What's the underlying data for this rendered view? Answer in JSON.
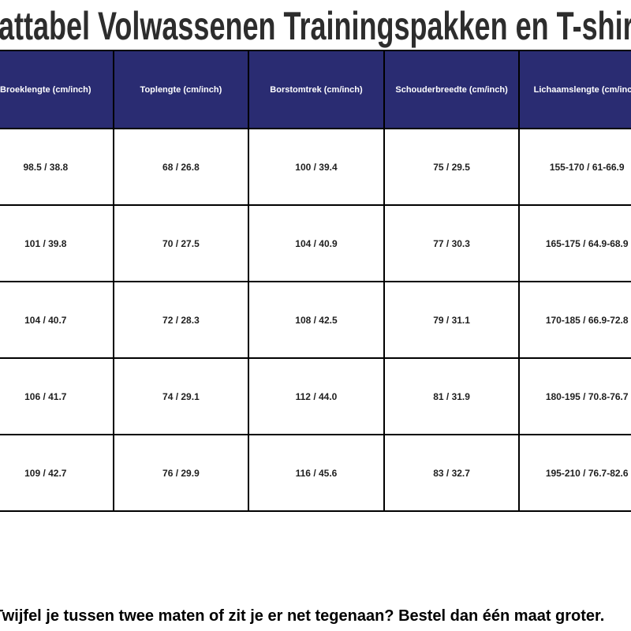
{
  "header": {
    "title": "Maattabel Volwassenen Trainingspakken en T-shirts"
  },
  "chart_data": {
    "type": "table",
    "title": "Maattabel Volwassenen Trainingspakken en T-shirts",
    "columns": [
      "Broeklengte (cm/inch)",
      "Toplengte (cm/inch)",
      "Borstomtrek (cm/inch)",
      "Schouderbreedte (cm/inch)",
      "Lichaamslengte (cm/inch)"
    ],
    "rows": [
      [
        "98.5 / 38.8",
        "68 / 26.8",
        "100 / 39.4",
        "75 / 29.5",
        "155-170 / 61-66.9"
      ],
      [
        "101 / 39.8",
        "70 / 27.5",
        "104 / 40.9",
        "77 / 30.3",
        "165-175 / 64.9-68.9"
      ],
      [
        "104 / 40.7",
        "72 / 28.3",
        "108 / 42.5",
        "79 / 31.1",
        "170-185 / 66.9-72.8"
      ],
      [
        "106 / 41.7",
        "74 / 29.1",
        "112 / 44.0",
        "81 / 31.9",
        "180-195 / 70.8-76.7"
      ],
      [
        "109 / 42.7",
        "76 / 29.9",
        "116 / 45.6",
        "83 / 32.7",
        "195-210 / 76.7-82.6"
      ]
    ],
    "layout": {
      "header_position": "top",
      "grid": true,
      "cells_cropped_left_and_right": true
    }
  },
  "footer": {
    "note": "Twijfel je tussen twee maten of zit je er net tegenaan? Bestel dan één maat groter."
  },
  "colors": {
    "header_bg": "#2a2c72",
    "header_text": "#ffffff",
    "cell_bg": "#ffffff",
    "cell_text": "#1f1f1f",
    "border": "#000000",
    "title_text": "#2d2d2d",
    "note_text": "#000000"
  }
}
